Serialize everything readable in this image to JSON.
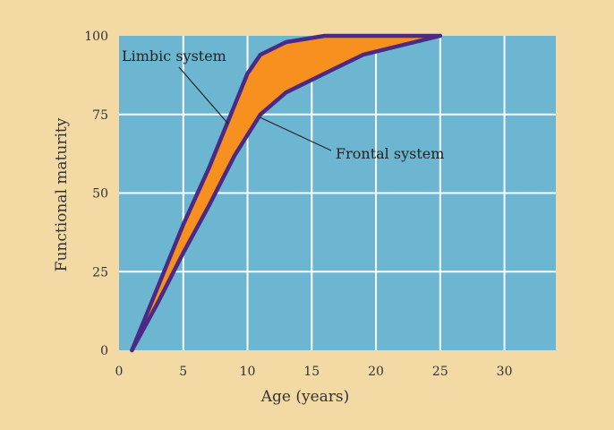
{
  "chart_data": {
    "type": "area",
    "xlabel": "Age (years)",
    "ylabel": "Functional maturity",
    "xlim": [
      0,
      34
    ],
    "ylim": [
      0,
      100
    ],
    "x_ticks": [
      0,
      5,
      10,
      15,
      20,
      25,
      30
    ],
    "y_ticks": [
      0,
      25,
      50,
      75,
      100
    ],
    "grid": true,
    "series": [
      {
        "name": "Limbic system",
        "x": [
          1,
          3,
          5,
          7,
          9,
          10,
          11,
          13,
          16,
          20,
          25
        ],
        "y": [
          0,
          20,
          40,
          58,
          78,
          88,
          94,
          98,
          100,
          100,
          100
        ]
      },
      {
        "name": "Frontal system",
        "x": [
          1,
          3,
          5,
          7,
          9,
          11,
          13,
          16,
          19,
          22,
          25
        ],
        "y": [
          0,
          15,
          31,
          46,
          62,
          75,
          82,
          88,
          94,
          97,
          100
        ]
      }
    ],
    "annotations": [
      {
        "text": "Limbic system",
        "series": 0
      },
      {
        "text": "Frontal system",
        "series": 1
      }
    ],
    "colors": {
      "background": "#f3d9a4",
      "plot_area": "#6db6d1",
      "gridline": "#ffffff",
      "fill": "#f7901e",
      "curve": "#4b2a86"
    }
  }
}
